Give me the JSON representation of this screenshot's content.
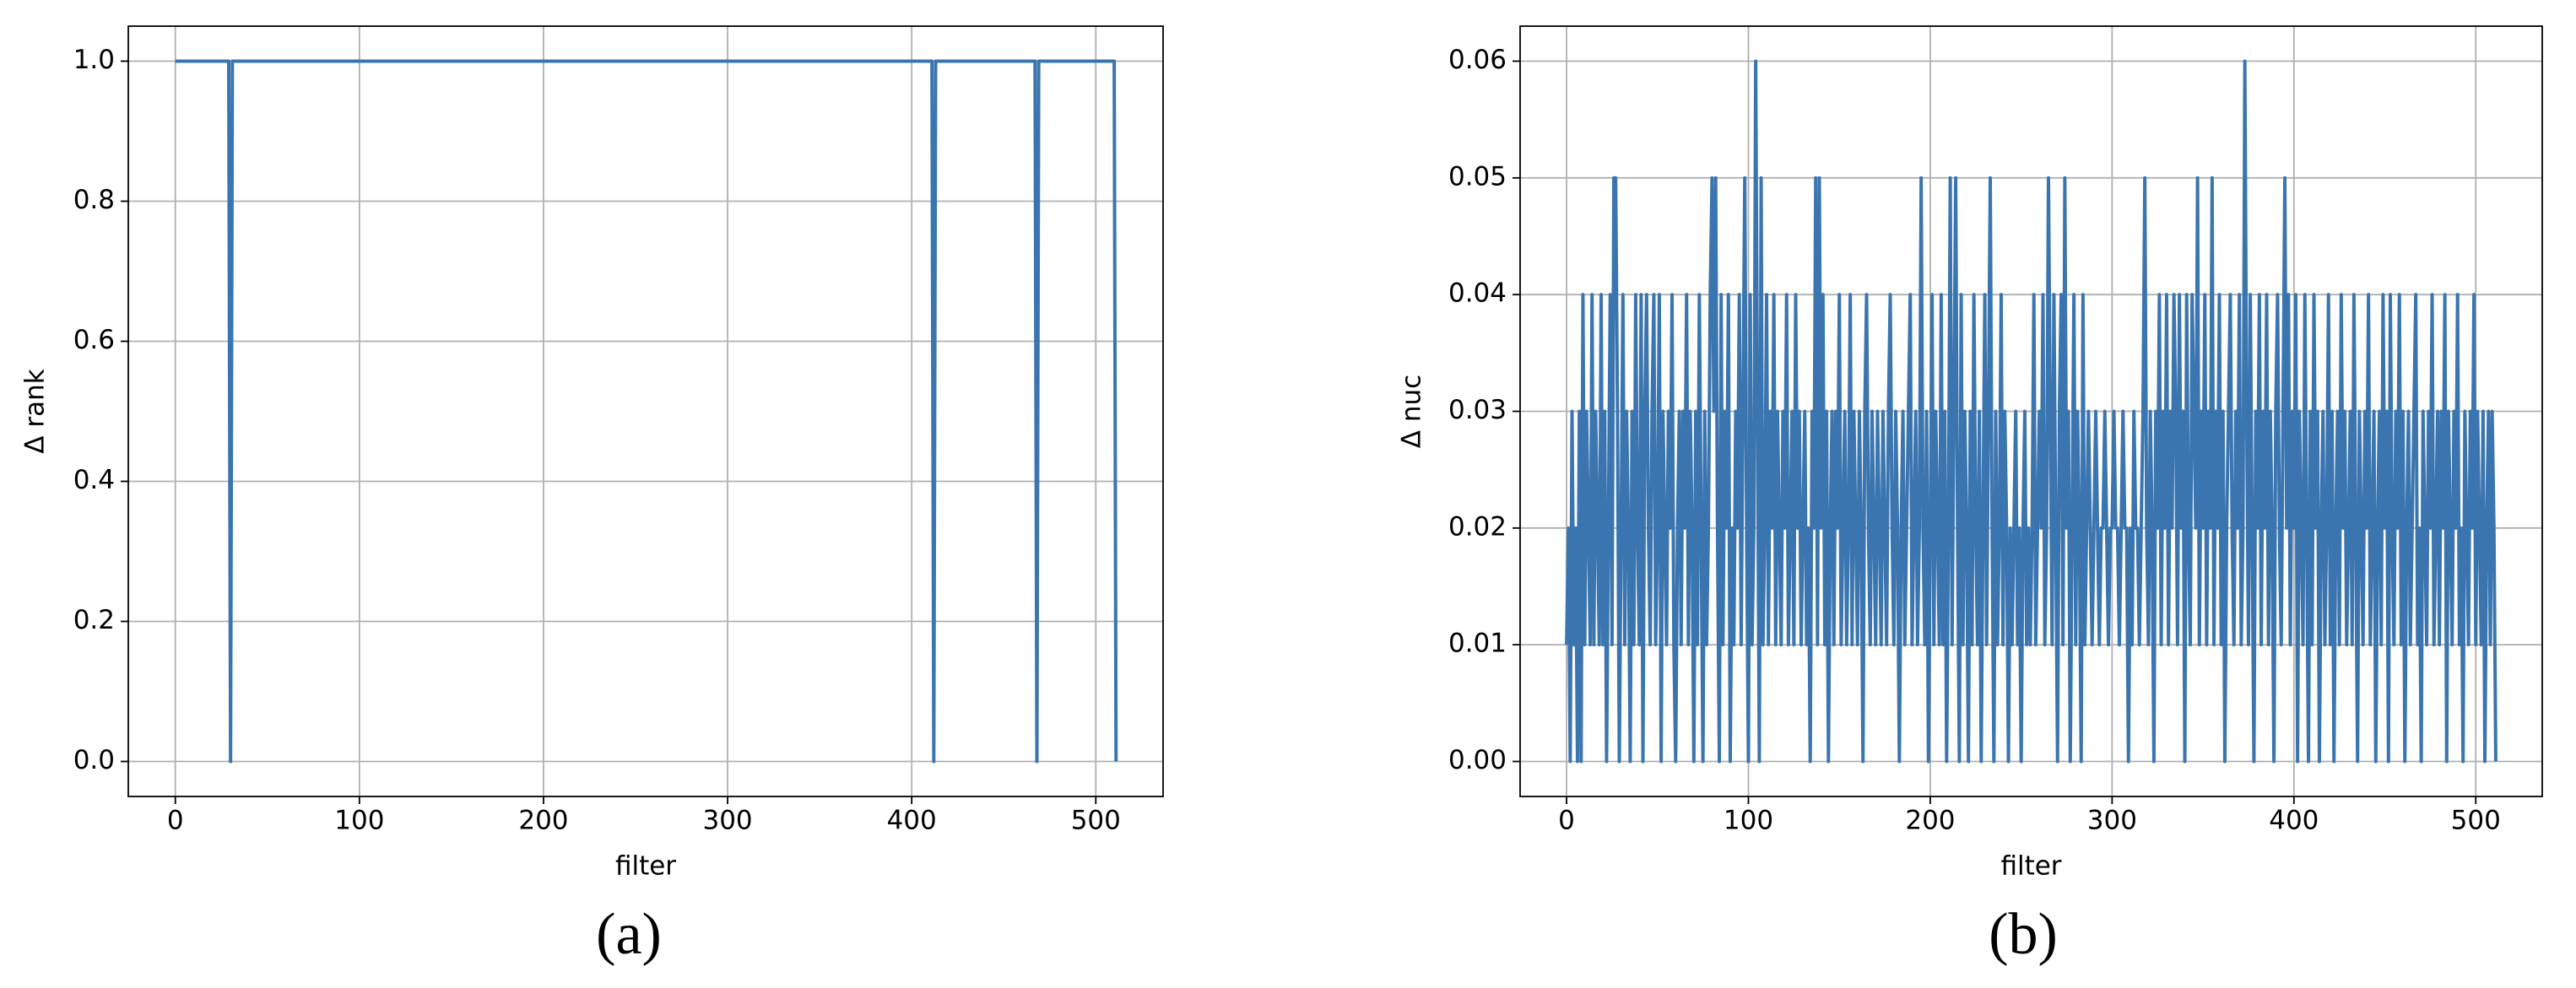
{
  "chart_data": [
    {
      "type": "line",
      "caption": "(a)",
      "xlabel": "filter",
      "ylabel": "Δ rank",
      "xlim": [
        -25.55,
        536.55
      ],
      "ylim": [
        -0.05,
        1.05
      ],
      "xticks": [
        0,
        100,
        200,
        300,
        400,
        500
      ],
      "yticks": [
        {
          "value": 0,
          "label": "0.0"
        },
        0.2,
        0.4,
        0.6,
        0.8,
        {
          "value": 1,
          "label": "1.0"
        }
      ],
      "grid": true,
      "series": [
        {
          "color": "#3a75b0",
          "x": [
            0,
            29,
            30,
            31,
            411,
            412,
            413,
            467,
            468,
            469,
            510,
            511
          ],
          "values": [
            1,
            1,
            0,
            1,
            1,
            0,
            1,
            1,
            0,
            1,
            1,
            0
          ]
        }
      ]
    },
    {
      "type": "line",
      "caption": "(b)",
      "xlabel": "filter",
      "ylabel": "Δ nuc",
      "xlim": [
        -25.55,
        536.55
      ],
      "ylim": [
        -0.003,
        0.063
      ],
      "xticks": [
        0,
        100,
        200,
        300,
        400,
        500
      ],
      "yticks": [
        {
          "value": 0,
          "label": "0.00"
        },
        0.01,
        0.02,
        0.03,
        0.04,
        0.05,
        0.06
      ],
      "grid": true,
      "series": [
        {
          "color": "#3a75b0",
          "values": [
            0.01,
            0.02,
            0,
            0.03,
            0.01,
            0.02,
            0,
            0.03,
            0,
            0.04,
            0.01,
            0.03,
            0.02,
            0.01,
            0.04,
            0.01,
            0.03,
            0.02,
            0.01,
            0.04,
            0.01,
            0.03,
            0,
            0.02,
            0.04,
            0.01,
            0.05,
            0.05,
            0.03,
            0,
            0.02,
            0.04,
            0.01,
            0.03,
            0.02,
            0,
            0.03,
            0.01,
            0.04,
            0.02,
            0.01,
            0.04,
            0,
            0.03,
            0.04,
            0.02,
            0.01,
            0.03,
            0.04,
            0.01,
            0.02,
            0.04,
            0,
            0.03,
            0.02,
            0.01,
            0.03,
            0.02,
            0.04,
            0.01,
            0,
            0.02,
            0.03,
            0.01,
            0.03,
            0.02,
            0.04,
            0.01,
            0.03,
            0.02,
            0,
            0.03,
            0.01,
            0.04,
            0.02,
            0,
            0.03,
            0.01,
            0.02,
            0.04,
            0.05,
            0.03,
            0.05,
            0.02,
            0,
            0.04,
            0.01,
            0.03,
            0.02,
            0.04,
            0,
            0.02,
            0.01,
            0.03,
            0.02,
            0.04,
            0.01,
            0.03,
            0.05,
            0.02,
            0,
            0.04,
            0.01,
            0.02,
            0.06,
            0.03,
            0,
            0.05,
            0.01,
            0.02,
            0.04,
            0.01,
            0.03,
            0.02,
            0.04,
            0.01,
            0.03,
            0.02,
            0.01,
            0.03,
            0.02,
            0.04,
            0.01,
            0.02,
            0.03,
            0.01,
            0.04,
            0.02,
            0.03,
            0.01,
            0.02,
            0.03,
            0.01,
            0.02,
            0,
            0.03,
            0.02,
            0.05,
            0.01,
            0.05,
            0.02,
            0.04,
            0.01,
            0.03,
            0,
            0.02,
            0.03,
            0.01,
            0.03,
            0.02,
            0.04,
            0.01,
            0.02,
            0.03,
            0.01,
            0.02,
            0.04,
            0.01,
            0.03,
            0.02,
            0.01,
            0.03,
            0.02,
            0,
            0.03,
            0.04,
            0.02,
            0.01,
            0.03,
            0.02,
            0.01,
            0.03,
            0.02,
            0.01,
            0.03,
            0.02,
            0.01,
            0.03,
            0.04,
            0.02,
            0.01,
            0.03,
            0.02,
            0,
            0.02,
            0.03,
            0.01,
            0.02,
            0.03,
            0.04,
            0.01,
            0.02,
            0.03,
            0.01,
            0.02,
            0.05,
            0.02,
            0.01,
            0.03,
            0,
            0.02,
            0.04,
            0.01,
            0.03,
            0.02,
            0.01,
            0.04,
            0.01,
            0.03,
            0,
            0.02,
            0.05,
            0.01,
            0.03,
            0.05,
            0.02,
            0,
            0.04,
            0.01,
            0.03,
            0.02,
            0,
            0.03,
            0.01,
            0.04,
            0.02,
            0.01,
            0.03,
            0,
            0.02,
            0.04,
            0.01,
            0.03,
            0.05,
            0.02,
            0,
            0.03,
            0.01,
            0.02,
            0.04,
            0.01,
            0.03,
            0.02,
            0,
            0.02,
            0.01,
            0.02,
            0.03,
            0.01,
            0.02,
            0,
            0.02,
            0.03,
            0.01,
            0.02,
            0.01,
            0.02,
            0.04,
            0.01,
            0.02,
            0.03,
            0.02,
            0.04,
            0.01,
            0.02,
            0.05,
            0.03,
            0.01,
            0.04,
            0.02,
            0,
            0.03,
            0.04,
            0.01,
            0.05,
            0.02,
            0.03,
            0,
            0.02,
            0.04,
            0.01,
            0.03,
            0.02,
            0,
            0.04,
            0.01,
            0.02,
            0.03,
            0.02,
            0.01,
            0.02,
            0.03,
            0.02,
            0.01,
            0.02,
            0.02,
            0.03,
            0.02,
            0.01,
            0.02,
            0.02,
            0.03,
            0.02,
            0.02,
            0.01,
            0.02,
            0.03,
            0.02,
            0.02,
            0,
            0.02,
            0.01,
            0.03,
            0.02,
            0.02,
            0.01,
            0.02,
            0.03,
            0.05,
            0.02,
            0.01,
            0.03,
            0.02,
            0,
            0.03,
            0.02,
            0.04,
            0.01,
            0.03,
            0.02,
            0.04,
            0.01,
            0.03,
            0.02,
            0.04,
            0.03,
            0.01,
            0.04,
            0.02,
            0.03,
            0,
            0.04,
            0.02,
            0.01,
            0.04,
            0.03,
            0.02,
            0.05,
            0.01,
            0.03,
            0.02,
            0.04,
            0.01,
            0.03,
            0.02,
            0.05,
            0.01,
            0.03,
            0.02,
            0.04,
            0.01,
            0.03,
            0,
            0.02,
            0.03,
            0.04,
            0.02,
            0.01,
            0.03,
            0.02,
            0.04,
            0.01,
            0.02,
            0.06,
            0.03,
            0.01,
            0.04,
            0.02,
            0,
            0.03,
            0.02,
            0.04,
            0.01,
            0.03,
            0.02,
            0.04,
            0.01,
            0.03,
            0.02,
            0,
            0.03,
            0.04,
            0.02,
            0.01,
            0.03,
            0.05,
            0.02,
            0.04,
            0.01,
            0.03,
            0.02,
            0.04,
            0,
            0.03,
            0.02,
            0.01,
            0.04,
            0.02,
            0,
            0.03,
            0.01,
            0.04,
            0.02,
            0.03,
            0,
            0.02,
            0.03,
            0.01,
            0.02,
            0.04,
            0.01,
            0.03,
            0,
            0.02,
            0.03,
            0.01,
            0.04,
            0.02,
            0.03,
            0.01,
            0.02,
            0.03,
            0.01,
            0.04,
            0.02,
            0,
            0.03,
            0.02,
            0.01,
            0.03,
            0.02,
            0.04,
            0.01,
            0.02,
            0.03,
            0,
            0.02,
            0.03,
            0.01,
            0.04,
            0.02,
            0.03,
            0,
            0.04,
            0.02,
            0.01,
            0.03,
            0.02,
            0.04,
            0.01,
            0.03,
            0,
            0.02,
            0.03,
            0.01,
            0.02,
            0.03,
            0.04,
            0.01,
            0.02,
            0,
            0.03,
            0.02,
            0.01,
            0.03,
            0.02,
            0.04,
            0.01,
            0.02,
            0.03,
            0.01,
            0.03,
            0.02,
            0.04,
            0,
            0.03,
            0.02,
            0.01,
            0.03,
            0.02,
            0.04,
            0.01,
            0.02,
            0,
            0.03,
            0.02,
            0.01,
            0.03,
            0.02,
            0.04,
            0.01,
            0.03,
            0.02,
            0.01,
            0.03,
            0,
            0.02,
            0.03,
            0.01,
            0.03,
            0.02,
            0
          ]
        }
      ]
    }
  ]
}
